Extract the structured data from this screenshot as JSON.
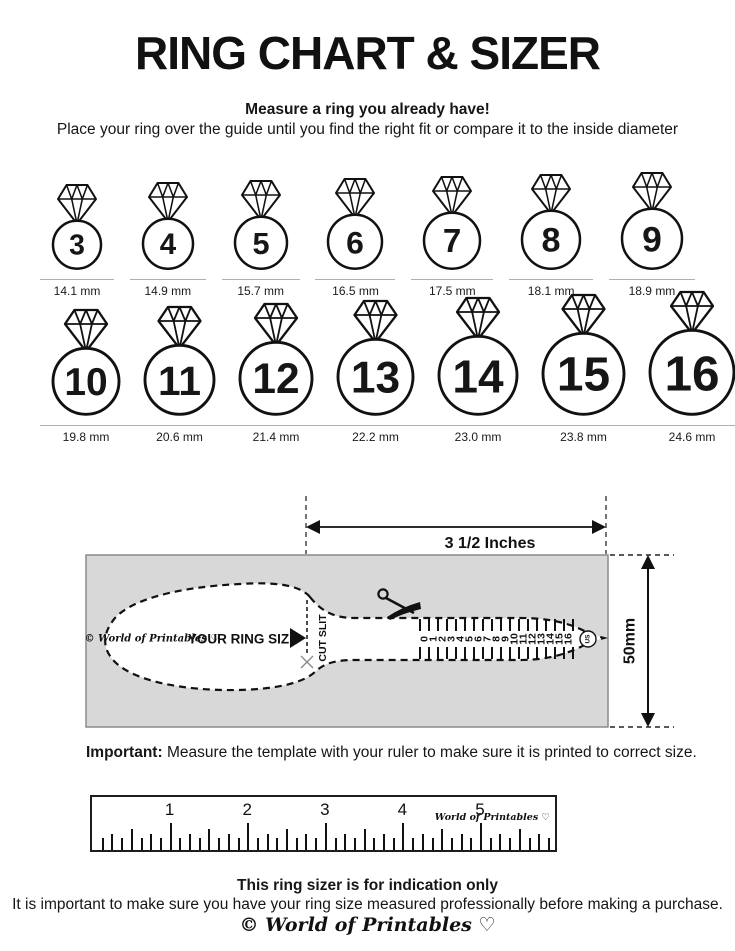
{
  "doc": {
    "title": "RING CHART & SIZER",
    "intro_heading": "Measure a ring you already have!",
    "intro_body": "Place your ring over the guide until you find the right fit or compare it to the inside diameter",
    "important_label": "Important:",
    "important_text": " Measure the template with your ruler to make sure it is printed to correct size.",
    "footer_heading": "This ring sizer is for indication only",
    "footer_body": "It is important to make sure you have your ring size measured professionally before making a purchase.",
    "brand_script": "© World of Printables ♡"
  },
  "ring_chart": {
    "row1": [
      {
        "size": "3",
        "diameter": "14.1 mm"
      },
      {
        "size": "4",
        "diameter": "14.9 mm"
      },
      {
        "size": "5",
        "diameter": "15.7 mm"
      },
      {
        "size": "6",
        "diameter": "16.5 mm"
      },
      {
        "size": "7",
        "diameter": "17.5 mm"
      },
      {
        "size": "8",
        "diameter": "18.1 mm"
      },
      {
        "size": "9",
        "diameter": "18.9 mm"
      }
    ],
    "row2": [
      {
        "size": "10",
        "diameter": "19.8 mm"
      },
      {
        "size": "11",
        "diameter": "20.6 mm"
      },
      {
        "size": "12",
        "diameter": "21.4 mm"
      },
      {
        "size": "13",
        "diameter": "22.2 mm"
      },
      {
        "size": "14",
        "diameter": "23.0 mm"
      },
      {
        "size": "15",
        "diameter": "23.8 mm"
      },
      {
        "size": "16",
        "diameter": "24.6 mm"
      }
    ]
  },
  "sizer": {
    "width_label": "3 1/2 Inches",
    "height_label": "50mm",
    "brand": "© World of Printables ♡",
    "label": "YOUR RING SIZE",
    "cut_slit": "CUT SLIT",
    "scale_numbers": [
      "0",
      "1",
      "2",
      "3",
      "4",
      "5",
      "6",
      "7",
      "8",
      "9",
      "10",
      "11",
      "12",
      "13",
      "14",
      "15",
      "16"
    ],
    "unit_badge": "US"
  },
  "ruler": {
    "numbers": [
      "1",
      "2",
      "3",
      "4",
      "5"
    ],
    "brand": "World of Printables ♡"
  },
  "colors": {
    "ink": "#161616",
    "panel": "#d8d8d8",
    "panel_border": "#8a8a8a",
    "muted_line": "#b0b0b0"
  }
}
